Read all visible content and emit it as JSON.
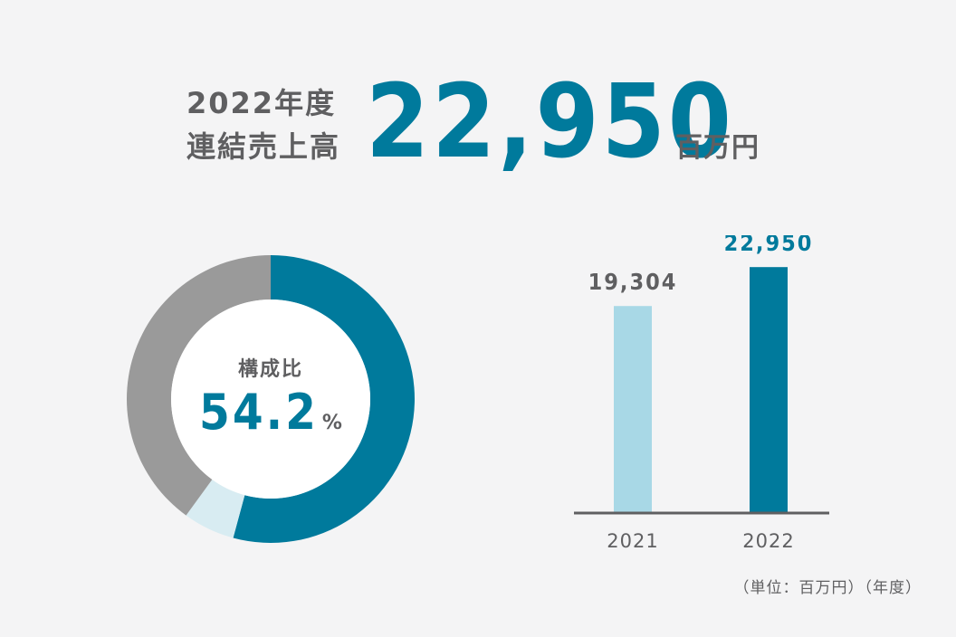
{
  "headline": {
    "label_line1": "2022年度",
    "label_line2": "連結売上高",
    "value": "22,950",
    "unit": "百万円"
  },
  "composition": {
    "label": "構成比",
    "value": "54.2",
    "unit": "%"
  },
  "donut_data": {
    "type": "pie",
    "slices": [
      {
        "value": 54.2,
        "color": "#007a9c"
      },
      {
        "value": 5.8,
        "color": "#d8ecf2"
      },
      {
        "value": 40.0,
        "color": "#9a9a9a"
      }
    ]
  },
  "chart_data": {
    "type": "bar",
    "categories": [
      "2021",
      "2022"
    ],
    "values": [
      19304,
      22950
    ],
    "value_labels": [
      "19,304",
      "22,950"
    ],
    "colors": [
      "#a8d8e6",
      "#007a9c"
    ],
    "label_colors": [
      "#5f5f61",
      "#007a9c"
    ],
    "ylim": [
      0,
      25000
    ]
  },
  "note": "（単位：百万円）（年度）"
}
